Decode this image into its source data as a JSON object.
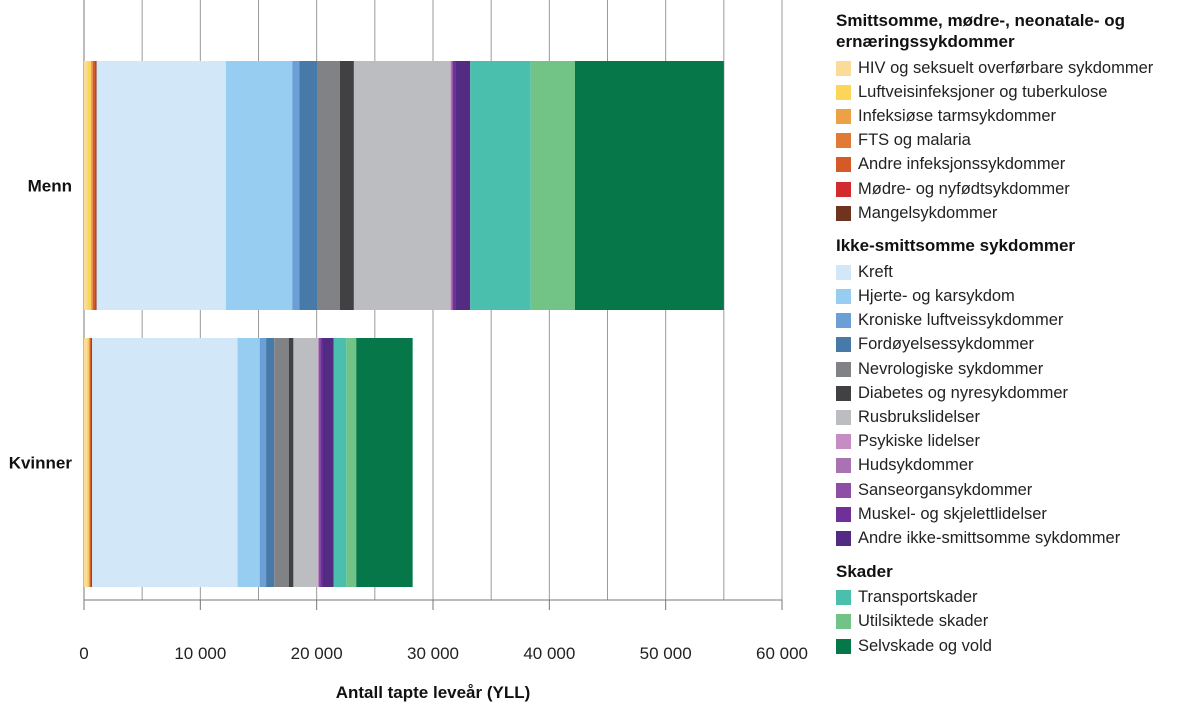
{
  "chart_data": {
    "type": "bar",
    "orientation": "horizontal",
    "stacked": true,
    "categories": [
      "Menn",
      "Kvinner"
    ],
    "xlabel": "Antall tapte leveår (YLL)",
    "xlim": [
      0,
      60000
    ],
    "xticks": [
      0,
      10000,
      20000,
      30000,
      40000,
      50000,
      60000
    ],
    "xtick_labels": [
      "0",
      "10 000",
      "20 000",
      "30 000",
      "40 000",
      "50 000",
      "60 000"
    ],
    "grid": true,
    "legend_placement": "right",
    "groups": [
      {
        "title": "Smittsomme, mødre-, neonatale- og ernæringssykdommer",
        "series": [
          0,
          1,
          2,
          3,
          4,
          5,
          6
        ]
      },
      {
        "title": "Ikke-smittsomme sykdommer",
        "series": [
          7,
          8,
          9,
          10,
          11,
          12,
          13,
          14,
          15,
          16,
          17,
          18
        ]
      },
      {
        "title": "Skader",
        "series": [
          19,
          20,
          21
        ]
      }
    ],
    "series": [
      {
        "name": "HIV og seksuelt overførbare sykdommer",
        "color": "#f9dc98",
        "values": [
          300,
          250
        ]
      },
      {
        "name": "Luftveisinfeksjoner og tuberkulose",
        "color": "#fcd559",
        "values": [
          300,
          150
        ]
      },
      {
        "name": "Infeksiøse tarmsykdommer",
        "color": "#eca244",
        "values": [
          100,
          50
        ]
      },
      {
        "name": "FTS og malaria",
        "color": "#e07a34",
        "values": [
          50,
          50
        ]
      },
      {
        "name": "Andre infeksjonssykdommer",
        "color": "#d45a28",
        "values": [
          200,
          100
        ]
      },
      {
        "name": "Mødre- og nyfødtsykdommer",
        "color": "#d32a2f",
        "values": [
          100,
          50
        ]
      },
      {
        "name": "Mangelsykdommer",
        "color": "#6e3420",
        "values": [
          50,
          50
        ]
      },
      {
        "name": "Kreft",
        "color": "#d2e7f7",
        "values": [
          11100,
          12500
        ]
      },
      {
        "name": "Hjerte- og karsykdom",
        "color": "#97cdf0",
        "values": [
          5700,
          1900
        ]
      },
      {
        "name": "Kroniske luftveissykdommer",
        "color": "#6b9fd6",
        "values": [
          600,
          550
        ]
      },
      {
        "name": "Fordøyelsessykdommer",
        "color": "#477aa8",
        "values": [
          1600,
          700
        ]
      },
      {
        "name": "Nevrologiske sykdommer",
        "color": "#808285",
        "values": [
          1900,
          1250
        ]
      },
      {
        "name": "Diabetes og nyresykdommer",
        "color": "#414143",
        "values": [
          1200,
          400
        ]
      },
      {
        "name": "Rusbrukslidelser",
        "color": "#bcbdc0",
        "values": [
          8300,
          2100
        ]
      },
      {
        "name": "Psykiske lidelser",
        "color": "#c68dc2",
        "values": [
          50,
          50
        ]
      },
      {
        "name": "Hudsykdommer",
        "color": "#a872b3",
        "values": [
          50,
          50
        ]
      },
      {
        "name": "Sanseorgansykdommer",
        "color": "#8e4ea4",
        "values": [
          100,
          100
        ]
      },
      {
        "name": "Muskel- og skjelettlidelser",
        "color": "#6f3199",
        "values": [
          200,
          200
        ]
      },
      {
        "name": "Andre ikke-smittsomme sykdommer",
        "color": "#532b82",
        "values": [
          1300,
          950
        ]
      },
      {
        "name": "Transportskader",
        "color": "#4bbfad",
        "values": [
          5200,
          1100
        ]
      },
      {
        "name": "Utilsiktede skader",
        "color": "#71c486",
        "values": [
          3800,
          850
        ]
      },
      {
        "name": "Selvskade og vold",
        "color": "#067748",
        "values": [
          12800,
          4850
        ]
      }
    ]
  }
}
